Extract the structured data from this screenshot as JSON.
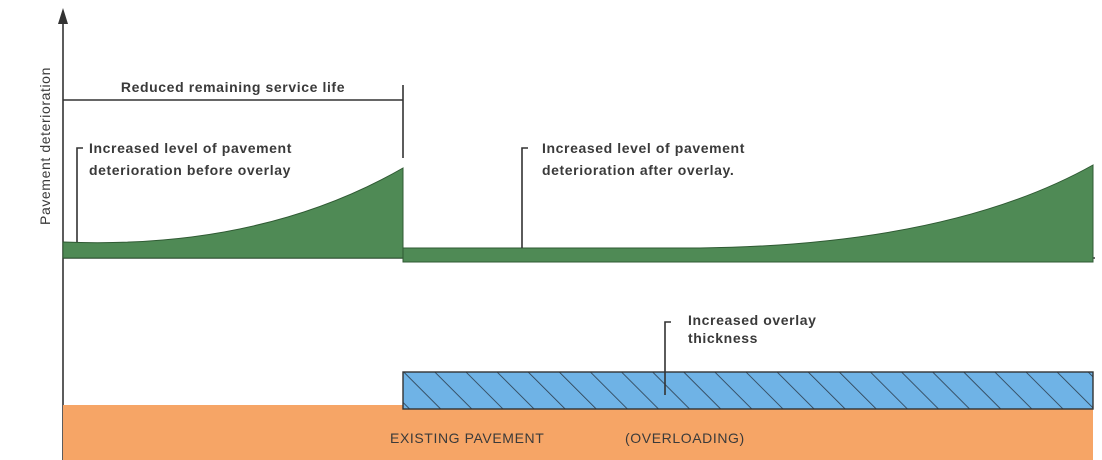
{
  "axis_label": "Pavement deterioration",
  "dimension_label": "Reduced remaining service life",
  "annotations": [
    {
      "lines": [
        "Increased level of pavement",
        "deterioration before overlay"
      ]
    },
    {
      "lines": [
        "Increased level of pavement",
        "deterioration after overlay."
      ]
    },
    {
      "lines": [
        "Increased overlay",
        "thickness"
      ]
    }
  ],
  "layers": {
    "existing": "EXISTING PAVEMENT",
    "note": "(OVERLOADING)"
  }
}
